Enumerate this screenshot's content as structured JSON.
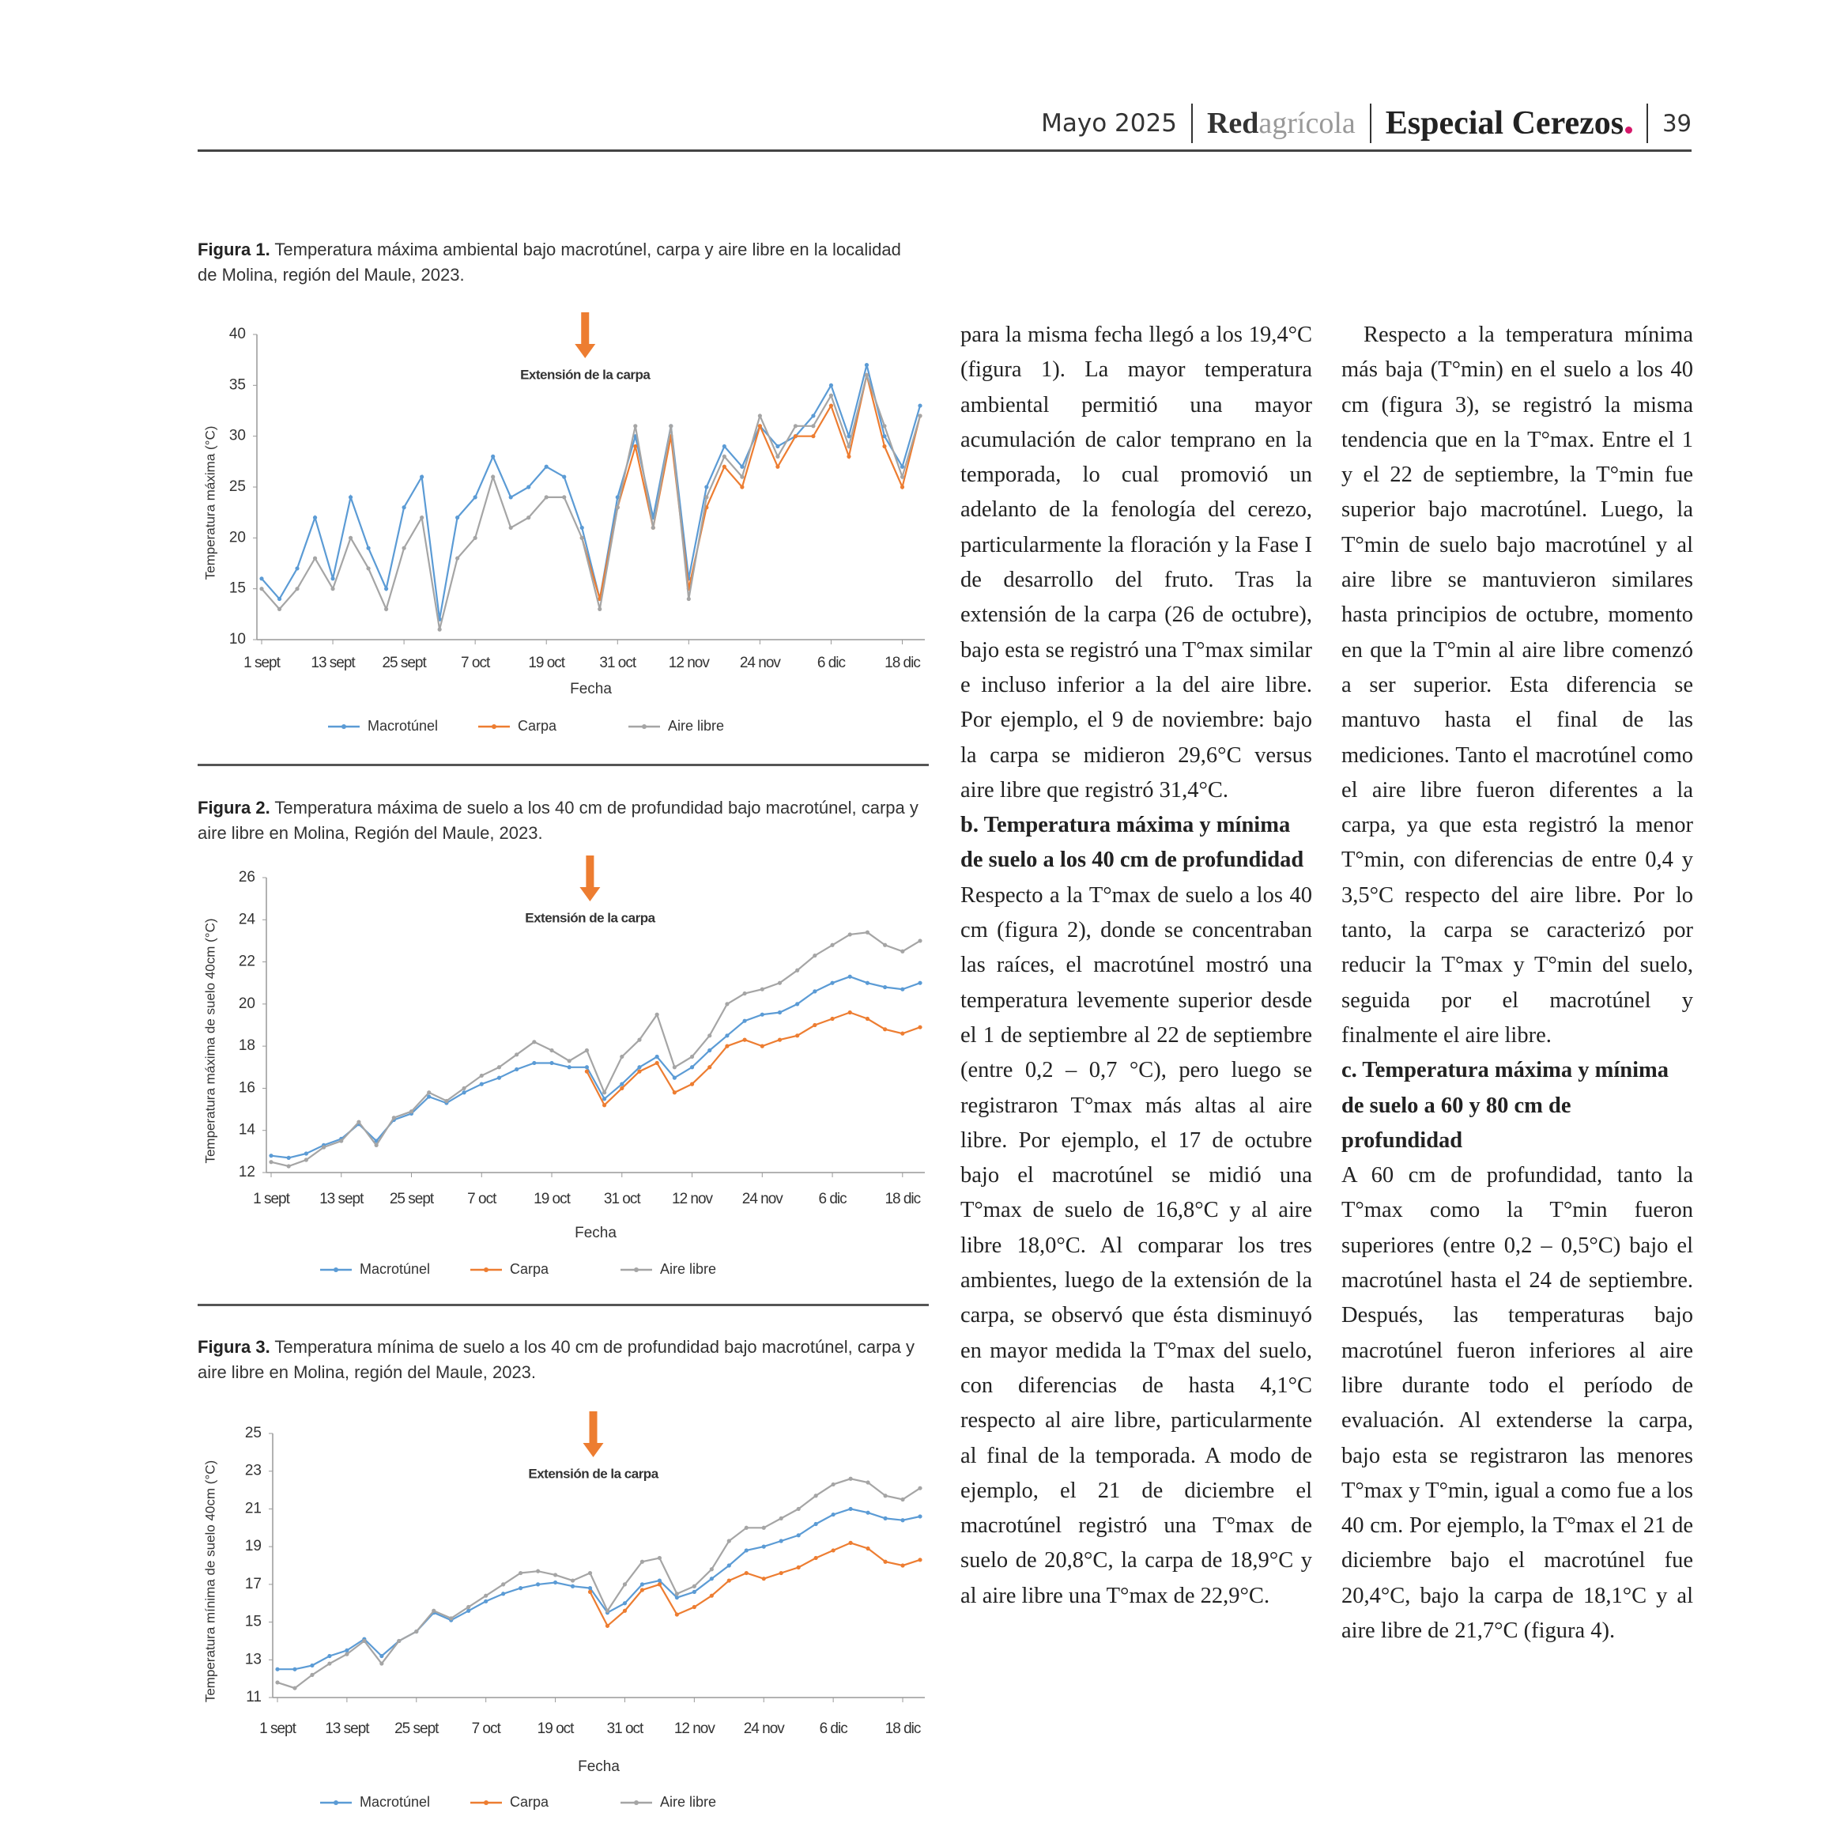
{
  "header": {
    "date": "Mayo 2025",
    "brand_bold": "Red",
    "brand_light": "agrícola",
    "section": "Especial Cerezos",
    "page": "39"
  },
  "chart_data": [
    {
      "type": "line",
      "caption_label": "Figura 1.",
      "title": "Temperatura máxima ambiental bajo macrotúnel, carpa y aire libre en la localidad de Molina, región del Maule, 2023.",
      "y_label": "Temperatura máxima (°C)",
      "x_label": "Fecha",
      "annotation": "Extensión de la carpa",
      "categories": [
        "1 sept",
        null,
        null,
        null,
        "13 sept",
        null,
        null,
        null,
        "25 sept",
        null,
        null,
        null,
        "7 oct",
        null,
        null,
        null,
        "19 oct",
        null,
        null,
        null,
        "31 oct",
        null,
        null,
        null,
        "12 nov",
        null,
        null,
        null,
        "24 nov",
        null,
        null,
        null,
        "6 dic",
        null,
        null,
        null,
        "18 dic",
        null
      ],
      "ylim": [
        10,
        40
      ],
      "yticks": [
        10,
        15,
        20,
        25,
        30,
        35,
        40
      ],
      "series": [
        {
          "name": "Macrotúnel",
          "color": "#5b9bd5",
          "values": [
            16,
            14,
            17,
            22,
            16,
            24,
            19,
            15,
            23,
            26,
            12,
            22,
            24,
            28,
            24,
            25,
            27,
            26,
            21,
            14,
            24,
            30,
            22,
            31,
            16,
            25,
            29,
            27,
            31,
            29,
            30,
            32,
            35,
            30,
            37,
            30,
            27,
            33
          ]
        },
        {
          "name": "Carpa",
          "color": "#ed7d31",
          "values": [
            null,
            null,
            null,
            null,
            null,
            null,
            null,
            null,
            null,
            null,
            null,
            null,
            null,
            null,
            null,
            null,
            null,
            null,
            20,
            14,
            23,
            29,
            21,
            30,
            15,
            23,
            27,
            25,
            31,
            27,
            30,
            30,
            33,
            28,
            36,
            29,
            25,
            32
          ]
        },
        {
          "name": "Aire libre",
          "color": "#a5a5a5",
          "values": [
            15,
            13,
            15,
            18,
            15,
            20,
            17,
            13,
            19,
            22,
            11,
            18,
            20,
            26,
            21,
            22,
            24,
            24,
            20,
            13,
            23,
            31,
            21,
            31,
            14,
            24,
            28,
            26,
            32,
            28,
            31,
            31,
            34,
            29,
            36,
            31,
            26,
            32
          ]
        }
      ]
    },
    {
      "type": "line",
      "caption_label": "Figura 2.",
      "title": "Temperatura máxima de suelo a los 40 cm de profundidad bajo macrotúnel, carpa y aire libre en Molina, Región del Maule, 2023.",
      "y_label": "Temperatura máxima de suelo 40cm (°C)",
      "x_label": "Fecha",
      "annotation": "Extensión de la carpa",
      "categories": [
        "1 sept",
        null,
        null,
        null,
        "13 sept",
        null,
        null,
        null,
        "25 sept",
        null,
        null,
        null,
        "7 oct",
        null,
        null,
        null,
        "19 oct",
        null,
        null,
        null,
        "31 oct",
        null,
        null,
        null,
        "12 nov",
        null,
        null,
        null,
        "24 nov",
        null,
        null,
        null,
        "6 dic",
        null,
        null,
        null,
        "18 dic",
        null
      ],
      "ylim": [
        12,
        26
      ],
      "yticks": [
        12,
        14,
        16,
        18,
        20,
        22,
        24,
        26
      ],
      "series": [
        {
          "name": "Macrotúnel",
          "color": "#5b9bd5",
          "values": [
            12.8,
            12.7,
            12.9,
            13.3,
            13.6,
            14.3,
            13.5,
            14.5,
            14.8,
            15.6,
            15.3,
            15.8,
            16.2,
            16.5,
            16.9,
            17.2,
            17.2,
            17.0,
            17.0,
            15.5,
            16.2,
            17.0,
            17.5,
            16.5,
            17.0,
            17.8,
            18.5,
            19.2,
            19.5,
            19.6,
            20.0,
            20.6,
            21.0,
            21.3,
            21.0,
            20.8,
            20.7,
            21.0
          ]
        },
        {
          "name": "Carpa",
          "color": "#ed7d31",
          "values": [
            null,
            null,
            null,
            null,
            null,
            null,
            null,
            null,
            null,
            null,
            null,
            null,
            null,
            null,
            null,
            null,
            null,
            null,
            16.8,
            15.2,
            16.0,
            16.8,
            17.2,
            15.8,
            16.2,
            17.0,
            18.0,
            18.3,
            18.0,
            18.3,
            18.5,
            19.0,
            19.3,
            19.6,
            19.3,
            18.8,
            18.6,
            18.9
          ]
        },
        {
          "name": "Aire libre",
          "color": "#a5a5a5",
          "values": [
            12.5,
            12.3,
            12.6,
            13.2,
            13.5,
            14.4,
            13.3,
            14.6,
            14.9,
            15.8,
            15.4,
            16.0,
            16.6,
            17.0,
            17.6,
            18.2,
            17.8,
            17.3,
            17.8,
            15.8,
            17.5,
            18.3,
            19.5,
            17.0,
            17.5,
            18.5,
            20.0,
            20.5,
            20.7,
            21.0,
            21.6,
            22.3,
            22.8,
            23.3,
            23.4,
            22.8,
            22.5,
            23.0
          ]
        }
      ]
    },
    {
      "type": "line",
      "caption_label": "Figura 3.",
      "title": "Temperatura mínima de suelo a los 40 cm de profundidad bajo macrotúnel, carpa y aire libre en Molina, región del Maule, 2023.",
      "y_label": "Temperatura mínima de suelo 40cm (°C)",
      "x_label": "Fecha",
      "annotation": "Extensión de la carpa",
      "categories": [
        "1 sept",
        null,
        null,
        null,
        "13 sept",
        null,
        null,
        null,
        "25 sept",
        null,
        null,
        null,
        "7 oct",
        null,
        null,
        null,
        "19 oct",
        null,
        null,
        null,
        "31 oct",
        null,
        null,
        null,
        "12 nov",
        null,
        null,
        null,
        "24 nov",
        null,
        null,
        null,
        "6 dic",
        null,
        null,
        null,
        "18 dic",
        null
      ],
      "ylim": [
        11,
        25
      ],
      "yticks": [
        11,
        13,
        15,
        17,
        19,
        21,
        23,
        25
      ],
      "series": [
        {
          "name": "Macrotúnel",
          "color": "#5b9bd5",
          "values": [
            12.5,
            12.5,
            12.7,
            13.2,
            13.5,
            14.1,
            13.2,
            14.0,
            14.5,
            15.5,
            15.1,
            15.6,
            16.1,
            16.5,
            16.8,
            17.0,
            17.1,
            16.9,
            16.8,
            15.5,
            16.0,
            17.0,
            17.2,
            16.3,
            16.6,
            17.3,
            18.0,
            18.8,
            19.0,
            19.3,
            19.6,
            20.2,
            20.7,
            21.0,
            20.8,
            20.5,
            20.4,
            20.6
          ]
        },
        {
          "name": "Carpa",
          "color": "#ed7d31",
          "values": [
            null,
            null,
            null,
            null,
            null,
            null,
            null,
            null,
            null,
            null,
            null,
            null,
            null,
            null,
            null,
            null,
            null,
            null,
            16.6,
            14.8,
            15.6,
            16.7,
            17.0,
            15.4,
            15.8,
            16.4,
            17.2,
            17.6,
            17.3,
            17.6,
            17.9,
            18.4,
            18.8,
            19.2,
            18.9,
            18.2,
            18.0,
            18.3
          ]
        },
        {
          "name": "Aire libre",
          "color": "#a5a5a5",
          "values": [
            11.8,
            11.5,
            12.2,
            12.8,
            13.3,
            14.0,
            12.8,
            14.0,
            14.5,
            15.6,
            15.2,
            15.8,
            16.4,
            17.0,
            17.6,
            17.7,
            17.5,
            17.2,
            17.6,
            15.6,
            17.0,
            18.2,
            18.4,
            16.5,
            16.9,
            17.8,
            19.3,
            20.0,
            20.0,
            20.5,
            21.0,
            21.7,
            22.3,
            22.6,
            22.4,
            21.7,
            21.5,
            22.1
          ]
        }
      ]
    }
  ],
  "article": {
    "columns": [
      [
        {
          "paragraph": "para la misma fecha llegó a los 19,4°C (figura 1). La mayor temperatura ambiental permitió una mayor acumulación de calor temprano en la temporada, lo cual promovió un adelanto de la fenología del cerezo, particularmente la floración y la Fase I de desarrollo del fruto. Tras la extensión de la carpa (26 de octubre), bajo esta se registró una T°max similar e incluso inferior a la del aire libre. Por ejemplo, el 9 de noviembre: bajo la carpa se midieron 29,6°C versus aire libre que registró 31,4°C."
        },
        {
          "heading": "b. Temperatura máxima y mínima de suelo a los 40 cm de profundidad"
        },
        {
          "paragraph": "Respecto a la T°max de suelo a los 40 cm (figura 2), donde se concentraban las raíces, el macrotúnel mostró una temperatura levemente superior desde el 1 de septiembre al 22 de septiembre (entre 0,2 – 0,7 °C), pero luego se registraron T°max más altas al aire libre. Por ejemplo, el 17 de octubre bajo el macrotúnel se midió una T°max de suelo de 16,8°C y al aire libre 18,0°C. Al comparar los tres ambientes, luego de la extensión de la carpa, se observó que ésta disminuyó en mayor medida la T°max del suelo, con diferencias de hasta 4,1°C respecto al aire libre, particularmente al final de la temporada. A modo de ejemplo, el 21 de diciembre el macrotúnel registró una T°max de suelo de 20,8°C, la carpa de 18,9°C y al aire libre una T°max de 22,9°C."
        }
      ],
      [
        {
          "paragraph": "Respecto a la temperatura mínima más baja (T°min) en el suelo a los 40 cm (figura 3), se registró la misma tendencia que en la T°max. Entre el 1 y el 22 de septiembre, la T°min fue superior bajo macrotúnel. Luego, la T°min de suelo bajo macrotúnel y al aire libre se mantuvieron similares hasta principios de octubre, momento en que la T°min al aire libre comenzó a ser superior. Esta diferencia se mantuvo hasta el final de las mediciones. Tanto el macrotúnel como el aire libre fueron diferentes a la carpa, ya que esta registró la menor T°min, con diferencias de entre 0,4 y 3,5°C respecto del aire libre. Por lo tanto, la carpa se caracterizó por reducir la T°max y T°min del suelo, seguida por el macrotúnel y finalmente el aire libre."
        },
        {
          "heading": "c. Temperatura máxima y mínima de suelo a 60 y 80 cm de profundidad"
        },
        {
          "paragraph": "A 60 cm de profundidad, tanto la T°max como la T°min fueron superiores (entre 0,2 – 0,5°C) bajo el macrotúnel hasta el 24 de septiembre. Después, las temperaturas bajo macrotúnel fueron inferiores al aire libre durante todo el período de evaluación. Al extenderse la carpa, bajo esta se registraron las menores T°max y T°min, igual a como fue a los 40 cm. Por ejemplo, la T°max el 21 de diciembre bajo el macrotúnel fue 20,4°C, bajo la carpa de 18,1°C y al aire libre de 21,7°C (figura 4)."
        }
      ]
    ]
  }
}
